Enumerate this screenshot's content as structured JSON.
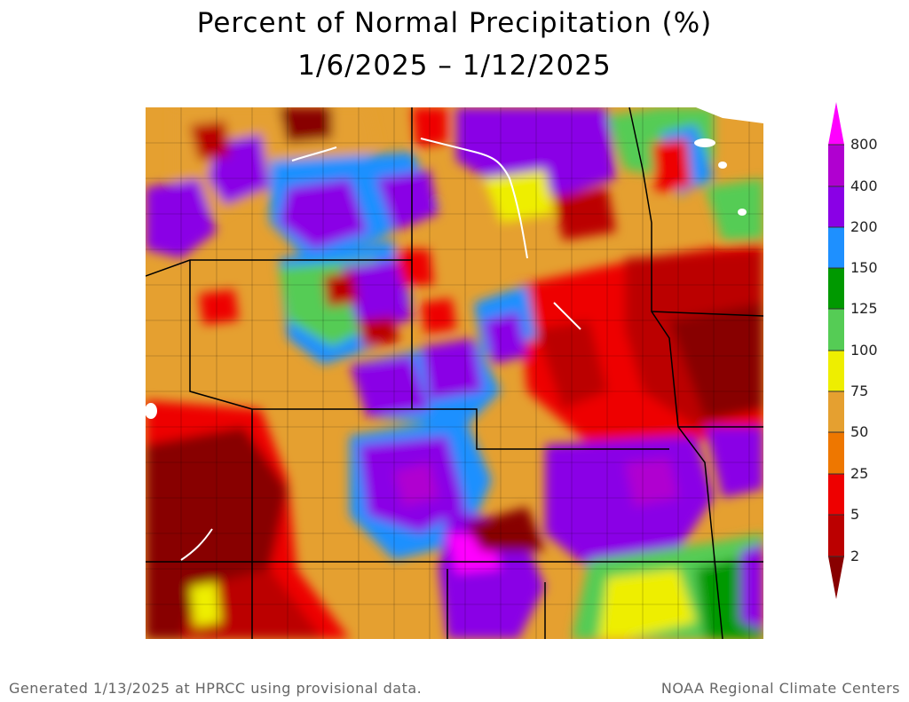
{
  "title": {
    "line1": "Percent of Normal Precipitation (%)",
    "line2": "1/6/2025 – 1/12/2025"
  },
  "legend": {
    "levels": [
      "800",
      "400",
      "200",
      "150",
      "125",
      "100",
      "75",
      "50",
      "25",
      "5",
      "2"
    ],
    "colors": {
      "c800plus": "#ff00ff",
      "c400_800": "#b000d0",
      "c200_400": "#8a00e6",
      "c150_200": "#1e90ff",
      "c125_150": "#009900",
      "c100_125": "#55cc55",
      "c75_100": "#eeee00",
      "c50_75": "#e5a030",
      "c25_50": "#ee7700",
      "c5_25": "#ee0000",
      "c2_5": "#bb0000",
      "c0_2": "#880000"
    }
  },
  "footer": {
    "left": "Generated 1/13/2025 at HPRCC using provisional data.",
    "right": "NOAA Regional Climate Centers"
  }
}
